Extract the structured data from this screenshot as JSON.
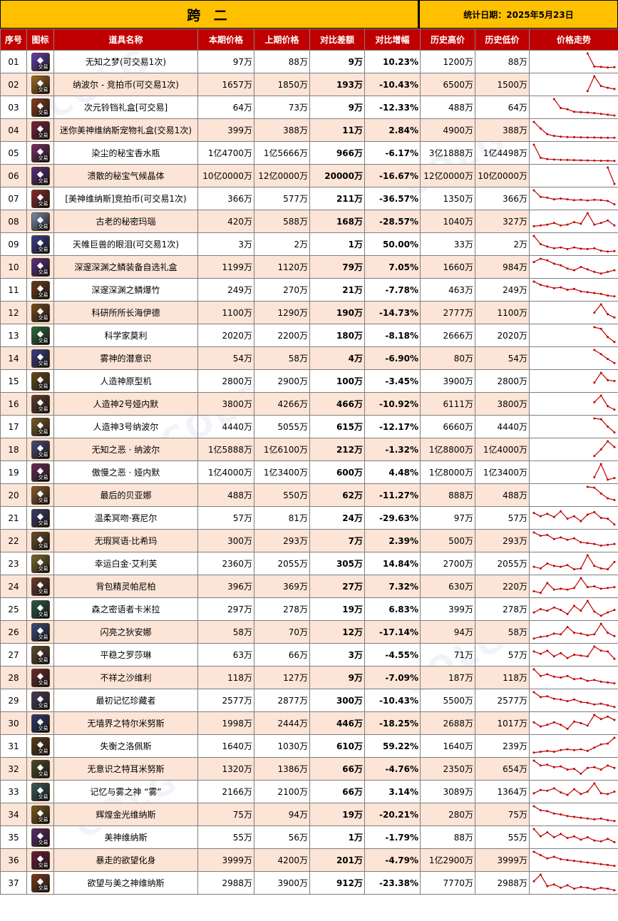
{
  "header": {
    "title": "跨 二",
    "date": "统计日期：2025年5月23日"
  },
  "columns": [
    "序号",
    "图标",
    "道具名称",
    "本期价格",
    "上期价格",
    "对比差额",
    "对比增幅",
    "历史高价",
    "历史低价",
    "价格走势"
  ],
  "trend_color": "#c00000",
  "up_color": "#e00000",
  "down_color": "#00a650",
  "badge_text": "交易",
  "rows": [
    {
      "no": "01",
      "icon": "purple-orb-icon",
      "iconColor": "#6a3fb5",
      "name": "无知之梦(可交易1次)",
      "cur": "97万",
      "prev": "88万",
      "diff": "9万",
      "pct": "10.23%",
      "dir": "up",
      "high": "1200万",
      "low": "88万",
      "trend": [
        null,
        null,
        null,
        null,
        null,
        null,
        null,
        null,
        100,
        20,
        18,
        15,
        16
      ]
    },
    {
      "no": "02",
      "icon": "coin-icon",
      "iconColor": "#a36b1e",
      "name": "纳波尔 - 竞拍币(可交易1次)",
      "cur": "1657万",
      "prev": "1850万",
      "diff": "193万",
      "pct": "-10.43%",
      "dir": "down",
      "high": "6500万",
      "low": "1500万",
      "trend": [
        null,
        null,
        null,
        null,
        null,
        null,
        null,
        null,
        10,
        100,
        40,
        30,
        22
      ]
    },
    {
      "no": "03",
      "icon": "box-icon",
      "iconColor": "#8a3c1c",
      "name": "次元铃铛礼盒[可交易]",
      "cur": "64万",
      "prev": "73万",
      "diff": "9万",
      "pct": "-12.33%",
      "dir": "down",
      "high": "488万",
      "low": "64万",
      "trend": [
        null,
        null,
        null,
        100,
        45,
        38,
        22,
        20,
        18,
        15,
        10,
        5,
        0
      ]
    },
    {
      "no": "04",
      "icon": "pet-box-icon",
      "iconColor": "#7a1f3f",
      "name": "迷你美神维纳斯宠物礼盒(交易1次)",
      "cur": "399万",
      "prev": "388万",
      "diff": "11万",
      "pct": "2.84%",
      "dir": "up",
      "high": "4900万",
      "low": "388万",
      "trend": [
        100,
        60,
        25,
        15,
        10,
        8,
        7,
        6,
        5,
        5,
        4,
        3,
        3
      ]
    },
    {
      "no": "05",
      "icon": "perfume-icon",
      "iconColor": "#7a2a6a",
      "name": "染尘的秘宝香水瓶",
      "cur": "1亿4700万",
      "prev": "1亿5666万",
      "diff": "966万",
      "pct": "-6.17%",
      "dir": "down",
      "high": "3亿1888万",
      "low": "1亿4498万",
      "trend": [
        100,
        20,
        12,
        10,
        8,
        7,
        6,
        5,
        4,
        3,
        2,
        2,
        1
      ]
    },
    {
      "no": "06",
      "icon": "crystal-icon",
      "iconColor": "#5a2a7a",
      "name": "溃散的秘宝气候晶体",
      "cur": "10亿0000万",
      "prev": "12亿0000万",
      "diff": "20000万",
      "pct": "-16.67%",
      "dir": "down",
      "high": "12亿0000万",
      "low": "10亿0000万",
      "trend": [
        null,
        null,
        null,
        null,
        null,
        null,
        null,
        null,
        null,
        null,
        null,
        100,
        0
      ]
    },
    {
      "no": "07",
      "icon": "coin-icon",
      "iconColor": "#8a2a2a",
      "name": "[美神维纳斯]竞拍币(可交易1次)",
      "cur": "366万",
      "prev": "577万",
      "diff": "211万",
      "pct": "-36.57%",
      "dir": "down",
      "high": "1350万",
      "low": "366万",
      "trend": [
        100,
        60,
        55,
        45,
        50,
        45,
        40,
        42,
        38,
        42,
        40,
        35,
        15
      ]
    },
    {
      "no": "08",
      "icon": "agate-icon",
      "iconColor": "#7a8fb0",
      "name": "古老的秘密玛瑙",
      "cur": "420万",
      "prev": "588万",
      "diff": "168万",
      "pct": "-28.57%",
      "dir": "down",
      "high": "1040万",
      "low": "327万",
      "trend": [
        20,
        25,
        30,
        40,
        25,
        30,
        45,
        35,
        100,
        30,
        40,
        55,
        25
      ]
    },
    {
      "no": "09",
      "icon": "tear-icon",
      "iconColor": "#3b3b8f",
      "name": "天帷巨兽的眼泪(可交易1次)",
      "cur": "3万",
      "prev": "2万",
      "diff": "1万",
      "pct": "50.00%",
      "dir": "up",
      "high": "33万",
      "low": "2万",
      "trend": [
        100,
        50,
        35,
        25,
        30,
        20,
        30,
        22,
        20,
        25,
        10,
        5,
        8
      ]
    },
    {
      "no": "10",
      "icon": "chest-icon",
      "iconColor": "#5a2f8a",
      "name": "深邃深渊之鳞装备自选礼盒",
      "cur": "1199万",
      "prev": "1120万",
      "diff": "79万",
      "pct": "7.05%",
      "dir": "up",
      "high": "1660万",
      "low": "984万",
      "trend": [
        80,
        100,
        90,
        70,
        60,
        40,
        30,
        50,
        35,
        20,
        10,
        20,
        30
      ]
    },
    {
      "no": "11",
      "icon": "firecracker-icon",
      "iconColor": "#6a3a1a",
      "name": "深邃深渊之鳞爆竹",
      "cur": "249万",
      "prev": "270万",
      "diff": "21万",
      "pct": "-7.78%",
      "dir": "down",
      "high": "463万",
      "low": "249万",
      "trend": [
        100,
        80,
        70,
        60,
        65,
        50,
        55,
        40,
        35,
        30,
        25,
        15,
        10
      ]
    },
    {
      "no": "12",
      "icon": "card-icon",
      "iconColor": "#7a4a1a",
      "name": "科研所所长海伊德",
      "cur": "1100万",
      "prev": "1290万",
      "diff": "190万",
      "pct": "-14.73%",
      "dir": "down",
      "high": "2777万",
      "low": "1100万",
      "trend": [
        null,
        null,
        null,
        null,
        null,
        null,
        null,
        null,
        null,
        50,
        100,
        40,
        20
      ]
    },
    {
      "no": "13",
      "icon": "card-icon",
      "iconColor": "#2a6a3a",
      "name": "科学家莫利",
      "cur": "2020万",
      "prev": "2200万",
      "diff": "180万",
      "pct": "-8.18%",
      "dir": "down",
      "high": "2666万",
      "low": "2020万",
      "trend": [
        null,
        null,
        null,
        null,
        null,
        null,
        null,
        null,
        null,
        100,
        90,
        40,
        10
      ]
    },
    {
      "no": "14",
      "icon": "card-icon",
      "iconColor": "#3a3a8a",
      "name": "雾神的潜意识",
      "cur": "54万",
      "prev": "58万",
      "diff": "4万",
      "pct": "-6.90%",
      "dir": "down",
      "high": "80万",
      "low": "54万",
      "trend": [
        null,
        null,
        null,
        null,
        null,
        null,
        null,
        null,
        null,
        100,
        75,
        45,
        20
      ]
    },
    {
      "no": "15",
      "icon": "card-icon",
      "iconColor": "#6a4a1a",
      "name": "人造神原型机",
      "cur": "2800万",
      "prev": "2900万",
      "diff": "100万",
      "pct": "-3.45%",
      "dir": "down",
      "high": "3900万",
      "low": "2800万",
      "trend": [
        null,
        null,
        null,
        null,
        null,
        null,
        null,
        null,
        null,
        40,
        100,
        55,
        50
      ]
    },
    {
      "no": "16",
      "icon": "card-icon",
      "iconColor": "#5a3a2a",
      "name": "人造神2号娅内默",
      "cur": "3800万",
      "prev": "4266万",
      "diff": "466万",
      "pct": "-10.92%",
      "dir": "down",
      "high": "6111万",
      "low": "3800万",
      "trend": [
        null,
        null,
        null,
        null,
        null,
        null,
        null,
        null,
        null,
        60,
        100,
        35,
        15
      ]
    },
    {
      "no": "17",
      "icon": "card-icon",
      "iconColor": "#7a5a2a",
      "name": "人造神3号纳波尔",
      "cur": "4440万",
      "prev": "5055万",
      "diff": "615万",
      "pct": "-12.17%",
      "dir": "down",
      "high": "6660万",
      "low": "4440万",
      "trend": [
        null,
        null,
        null,
        null,
        null,
        null,
        null,
        null,
        null,
        100,
        95,
        50,
        15
      ]
    },
    {
      "no": "18",
      "icon": "card-icon",
      "iconColor": "#4a4a7a",
      "name": "无知之恶 · 纳波尔",
      "cur": "1亿5888万",
      "prev": "1亿6100万",
      "diff": "212万",
      "pct": "-1.32%",
      "dir": "down",
      "high": "1亿8800万",
      "low": "1亿4000万",
      "trend": [
        null,
        null,
        null,
        null,
        null,
        null,
        null,
        null,
        null,
        10,
        50,
        100,
        65
      ]
    },
    {
      "no": "19",
      "icon": "card-icon",
      "iconColor": "#6a2a5a",
      "name": "傲慢之恶 · 娅内默",
      "cur": "1亿4000万",
      "prev": "1亿3400万",
      "diff": "600万",
      "pct": "4.48%",
      "dir": "up",
      "high": "1亿8000万",
      "low": "1亿3400万",
      "trend": [
        null,
        null,
        null,
        null,
        null,
        null,
        null,
        null,
        null,
        20,
        100,
        5,
        15
      ]
    },
    {
      "no": "20",
      "icon": "card-icon",
      "iconColor": "#8a5a2a",
      "name": "最后的贝亚娜",
      "cur": "488万",
      "prev": "550万",
      "diff": "62万",
      "pct": "-11.27%",
      "dir": "down",
      "high": "888万",
      "low": "488万",
      "trend": [
        null,
        null,
        null,
        null,
        null,
        null,
        null,
        null,
        100,
        95,
        60,
        30,
        20
      ]
    },
    {
      "no": "21",
      "icon": "card-icon",
      "iconColor": "#3a3a6a",
      "name": "温柔冥吻·赛尼尔",
      "cur": "57万",
      "prev": "81万",
      "diff": "24万",
      "pct": "-29.63%",
      "dir": "down",
      "high": "97万",
      "low": "57万",
      "trend": [
        80,
        60,
        75,
        55,
        90,
        45,
        60,
        30,
        70,
        85,
        50,
        45,
        10
      ]
    },
    {
      "no": "22",
      "icon": "card-icon",
      "iconColor": "#6a4a2a",
      "name": "无瑕冥语·比希玛",
      "cur": "300万",
      "prev": "293万",
      "diff": "7万",
      "pct": "2.39%",
      "dir": "up",
      "high": "500万",
      "low": "293万",
      "trend": [
        100,
        80,
        85,
        60,
        70,
        55,
        65,
        40,
        35,
        30,
        20,
        25,
        30
      ]
    },
    {
      "no": "23",
      "icon": "card-icon",
      "iconColor": "#7a6a2a",
      "name": "幸运白金·艾利芙",
      "cur": "2360万",
      "prev": "2055万",
      "diff": "305万",
      "pct": "14.84%",
      "dir": "up",
      "high": "2700万",
      "low": "2055万",
      "trend": [
        30,
        20,
        50,
        35,
        30,
        40,
        15,
        20,
        100,
        35,
        20,
        15,
        60
      ]
    },
    {
      "no": "24",
      "icon": "card-icon",
      "iconColor": "#6a3a2a",
      "name": "背包精灵帕尼柏",
      "cur": "396万",
      "prev": "369万",
      "diff": "27万",
      "pct": "7.32%",
      "dir": "up",
      "high": "630万",
      "low": "220万",
      "trend": [
        20,
        10,
        70,
        30,
        35,
        30,
        40,
        100,
        45,
        50,
        35,
        40,
        45
      ]
    },
    {
      "no": "25",
      "icon": "card-icon",
      "iconColor": "#2a5a4a",
      "name": "森之密语者卡米拉",
      "cur": "297万",
      "prev": "278万",
      "diff": "19万",
      "pct": "6.83%",
      "dir": "up",
      "high": "399万",
      "low": "278万",
      "trend": [
        30,
        50,
        40,
        60,
        45,
        20,
        70,
        40,
        100,
        35,
        10,
        30,
        45
      ]
    },
    {
      "no": "26",
      "icon": "card-icon",
      "iconColor": "#3a4a7a",
      "name": "闪亮之狄安娜",
      "cur": "58万",
      "prev": "70万",
      "diff": "12万",
      "pct": "-17.14%",
      "dir": "down",
      "high": "94万",
      "low": "58万",
      "trend": [
        10,
        20,
        25,
        40,
        35,
        80,
        45,
        40,
        30,
        35,
        100,
        45,
        25
      ]
    },
    {
      "no": "27",
      "icon": "card-icon",
      "iconColor": "#5a4a2a",
      "name": "平稳之罗莎琳",
      "cur": "63万",
      "prev": "66万",
      "diff": "3万",
      "pct": "-4.55%",
      "dir": "down",
      "high": "71万",
      "low": "57万",
      "trend": [
        70,
        55,
        75,
        40,
        60,
        30,
        50,
        45,
        40,
        100,
        75,
        70,
        25
      ]
    },
    {
      "no": "28",
      "icon": "card-icon",
      "iconColor": "#6a2a2a",
      "name": "不祥之沙维利",
      "cur": "118万",
      "prev": "127万",
      "diff": "9万",
      "pct": "-7.09%",
      "dir": "down",
      "high": "187万",
      "low": "118万",
      "trend": [
        100,
        60,
        70,
        55,
        50,
        60,
        40,
        45,
        30,
        35,
        25,
        20,
        15
      ]
    },
    {
      "no": "29",
      "icon": "card-icon",
      "iconColor": "#4a3a5a",
      "name": "最初记忆珍藏者",
      "cur": "2577万",
      "prev": "2877万",
      "diff": "300万",
      "pct": "-10.43%",
      "dir": "down",
      "high": "5500万",
      "low": "2577万",
      "trend": [
        100,
        70,
        75,
        60,
        55,
        45,
        55,
        40,
        35,
        25,
        30,
        20,
        10
      ]
    },
    {
      "no": "30",
      "icon": "card-icon",
      "iconColor": "#2a3a6a",
      "name": "无墙界之特尔米努斯",
      "cur": "1998万",
      "prev": "2444万",
      "diff": "446万",
      "pct": "-18.25%",
      "dir": "down",
      "high": "2688万",
      "low": "1017万",
      "trend": [
        55,
        30,
        40,
        55,
        40,
        15,
        60,
        50,
        35,
        100,
        75,
        90,
        70
      ]
    },
    {
      "no": "31",
      "icon": "card-icon",
      "iconColor": "#5a3a1a",
      "name": "失衡之洛佩斯",
      "cur": "1640万",
      "prev": "1030万",
      "diff": "610万",
      "pct": "59.22%",
      "dir": "up",
      "high": "1640万",
      "low": "239万",
      "trend": [
        10,
        15,
        20,
        15,
        25,
        30,
        25,
        30,
        20,
        40,
        60,
        65,
        100
      ]
    },
    {
      "no": "32",
      "icon": "card-icon",
      "iconColor": "#4a4a2a",
      "name": "无意识之特耳米努斯",
      "cur": "1320万",
      "prev": "1386万",
      "diff": "66万",
      "pct": "-4.76%",
      "dir": "down",
      "high": "2350万",
      "low": "654万",
      "trend": [
        100,
        70,
        75,
        60,
        65,
        45,
        50,
        20,
        55,
        60,
        45,
        70,
        55
      ]
    },
    {
      "no": "33",
      "icon": "card-icon",
      "iconColor": "#3a5a5a",
      "name": "记忆与雾之神 “雾”",
      "cur": "2166万",
      "prev": "2100万",
      "diff": "66万",
      "pct": "3.14%",
      "dir": "up",
      "high": "3089万",
      "low": "1364万",
      "trend": [
        40,
        60,
        55,
        70,
        45,
        30,
        65,
        35,
        50,
        100,
        40,
        35,
        50
      ]
    },
    {
      "no": "34",
      "icon": "card-icon",
      "iconColor": "#7a5a1a",
      "name": "辉煌金光维纳斯",
      "cur": "75万",
      "prev": "94万",
      "diff": "19万",
      "pct": "-20.21%",
      "dir": "down",
      "high": "280万",
      "low": "75万",
      "trend": [
        100,
        75,
        70,
        55,
        50,
        40,
        35,
        30,
        25,
        20,
        25,
        15,
        10
      ]
    },
    {
      "no": "35",
      "icon": "card-icon",
      "iconColor": "#5a2a6a",
      "name": "美神维纳斯",
      "cur": "55万",
      "prev": "56万",
      "diff": "1万",
      "pct": "-1.79%",
      "dir": "down",
      "high": "88万",
      "low": "55万",
      "trend": [
        100,
        55,
        80,
        50,
        70,
        45,
        55,
        35,
        50,
        30,
        25,
        40,
        20
      ]
    },
    {
      "no": "36",
      "icon": "card-icon",
      "iconColor": "#6a1a3a",
      "name": "暴走的欲望化身",
      "cur": "3999万",
      "prev": "4200万",
      "diff": "201万",
      "pct": "-4.79%",
      "dir": "down",
      "high": "1亿2900万",
      "low": "3999万",
      "trend": [
        100,
        80,
        60,
        70,
        55,
        50,
        45,
        40,
        35,
        30,
        25,
        20,
        15
      ]
    },
    {
      "no": "37",
      "icon": "card-icon",
      "iconColor": "#7a3a1a",
      "name": "欲望与美之神维纳斯",
      "cur": "2988万",
      "prev": "3900万",
      "diff": "912万",
      "pct": "-23.38%",
      "dir": "down",
      "high": "7770万",
      "low": "2988万",
      "trend": [
        60,
        100,
        30,
        40,
        20,
        35,
        15,
        25,
        20,
        10,
        20,
        15,
        5
      ]
    }
  ]
}
